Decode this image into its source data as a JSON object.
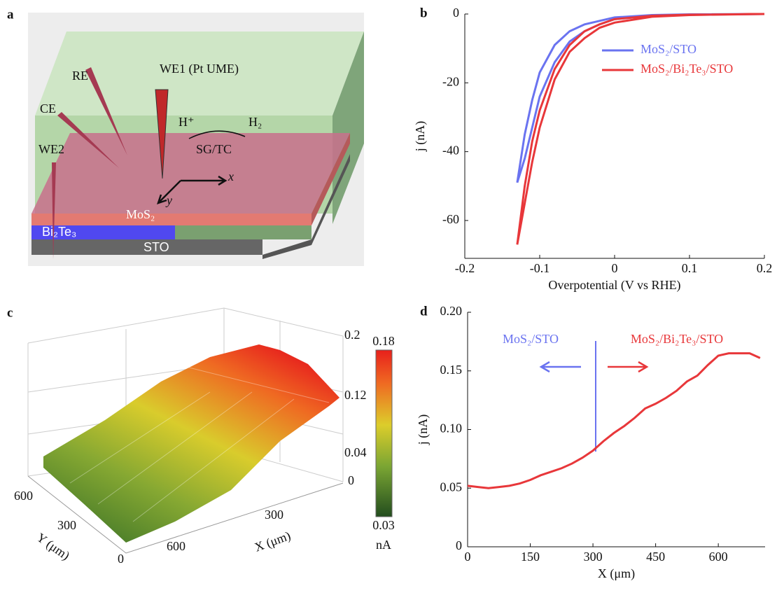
{
  "panel_a": {
    "label": "a",
    "electrodes": [
      "WE1 (Pt UME)",
      "RE",
      "CE",
      "WE2"
    ],
    "reaction": {
      "from": "H⁺",
      "to": "H₂",
      "mode": "SG/TC"
    },
    "axes": [
      "x",
      "y"
    ],
    "layers": [
      "MoS₂",
      "Bi₂Te₃",
      "STO"
    ]
  },
  "panel_c": {
    "label": "c",
    "z_ticks": [
      "0.2",
      "0.12",
      "0.04",
      "0"
    ],
    "colorbar": {
      "max": "0.18",
      "min": "0.03",
      "unit": "nA"
    },
    "y_ticks": [
      "600",
      "300",
      "0"
    ],
    "y_label": "Y (μm)",
    "x_ticks": [
      "300",
      "600"
    ],
    "x_label": "X (μm)"
  },
  "chart_data": [
    {
      "type": "line",
      "label": "b",
      "xlabel": "Overpotential (V vs RHE)",
      "ylabel": "j (nA)",
      "x": [
        -0.13,
        -0.12,
        -0.11,
        -0.1,
        -0.08,
        -0.06,
        -0.04,
        -0.02,
        0,
        0.05,
        0.1,
        0.2,
        0.1,
        0.05,
        0,
        -0.02,
        -0.04,
        -0.06,
        -0.08,
        -0.1,
        -0.11,
        -0.12,
        -0.13
      ],
      "series": [
        {
          "name": "MoS₂/STO",
          "color": "#6a73f0",
          "values": [
            -49,
            -35,
            -25,
            -17,
            -9,
            -5,
            -3,
            -2,
            -1,
            -0.3,
            -0.1,
            0,
            -0.2,
            -0.5,
            -1.5,
            -3,
            -5,
            -8,
            -14,
            -24,
            -33,
            -42,
            -49
          ]
        },
        {
          "name": "MoS₂/Bi₂Te₃/STO",
          "color": "#e8373a",
          "values": [
            -67,
            -50,
            -37,
            -28,
            -16,
            -9,
            -5,
            -3,
            -1.5,
            -0.5,
            -0.2,
            0,
            -0.3,
            -0.8,
            -2.5,
            -4,
            -7,
            -11,
            -19,
            -33,
            -43,
            -55,
            -67
          ]
        }
      ],
      "xlim": [
        -0.2,
        0.2
      ],
      "xticks": [
        -0.2,
        -0.1,
        0,
        0.1,
        0.2
      ],
      "ylim": [
        -71,
        0
      ],
      "yticks": [
        0,
        -20,
        -40,
        -60
      ],
      "legend": "upper-right"
    },
    {
      "type": "line",
      "label": "d",
      "xlabel": "X (μm)",
      "ylabel": "j (nA)",
      "x": [
        0,
        25,
        50,
        75,
        100,
        125,
        150,
        175,
        200,
        225,
        250,
        275,
        300,
        325,
        350,
        375,
        400,
        425,
        450,
        475,
        500,
        525,
        550,
        575,
        600,
        625,
        650,
        675,
        700
      ],
      "series": [
        {
          "color": "#e8373a",
          "values": [
            0.052,
            0.051,
            0.05,
            0.051,
            0.052,
            0.054,
            0.057,
            0.061,
            0.064,
            0.067,
            0.071,
            0.076,
            0.082,
            0.09,
            0.097,
            0.103,
            0.11,
            0.118,
            0.122,
            0.127,
            0.133,
            0.141,
            0.146,
            0.155,
            0.163,
            0.165,
            0.165,
            0.165,
            0.161
          ]
        }
      ],
      "annotations": [
        {
          "text": "MoS₂/STO",
          "color": "#6a73f0"
        },
        {
          "text": "MoS₂/Bi₂Te₃/STO",
          "color": "#e8373a"
        }
      ],
      "xlim": [
        0,
        712
      ],
      "xticks": [
        0,
        150,
        300,
        450,
        600
      ],
      "ylim": [
        0,
        0.2
      ],
      "yticks": [
        0,
        0.05,
        {
          "value": 0.1,
          "label": "0.10"
        },
        0.15,
        {
          "value": 0.2,
          "label": "0.20"
        }
      ]
    }
  ]
}
